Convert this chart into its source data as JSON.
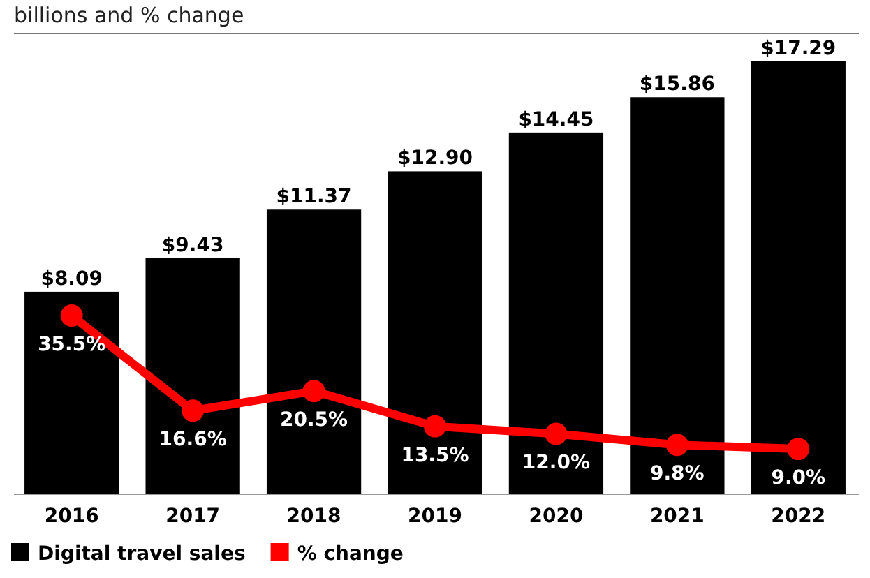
{
  "chart_data": {
    "type": "bar",
    "subtitle": "billions and % change",
    "categories": [
      "2016",
      "2017",
      "2018",
      "2019",
      "2020",
      "2021",
      "2022"
    ],
    "series": [
      {
        "name": "Digital travel sales",
        "color": "#000000",
        "values": [
          8.09,
          9.43,
          11.37,
          12.9,
          14.45,
          15.86,
          17.29
        ],
        "value_labels": [
          "$8.09",
          "$9.43",
          "$11.37",
          "$12.90",
          "$14.45",
          "$15.86",
          "$17.29"
        ]
      },
      {
        "name": "% change",
        "type": "line",
        "axis": "y2",
        "color": "#ff0000",
        "marker": "circle",
        "values": [
          35.5,
          16.6,
          20.5,
          13.5,
          12.0,
          9.8,
          9.0
        ],
        "value_labels": [
          "35.5%",
          "16.6%",
          "20.5%",
          "13.5%",
          "12.0%",
          "9.8%",
          "9.0%"
        ]
      }
    ],
    "tick_labels": "x",
    "legend": "bottom left"
  }
}
